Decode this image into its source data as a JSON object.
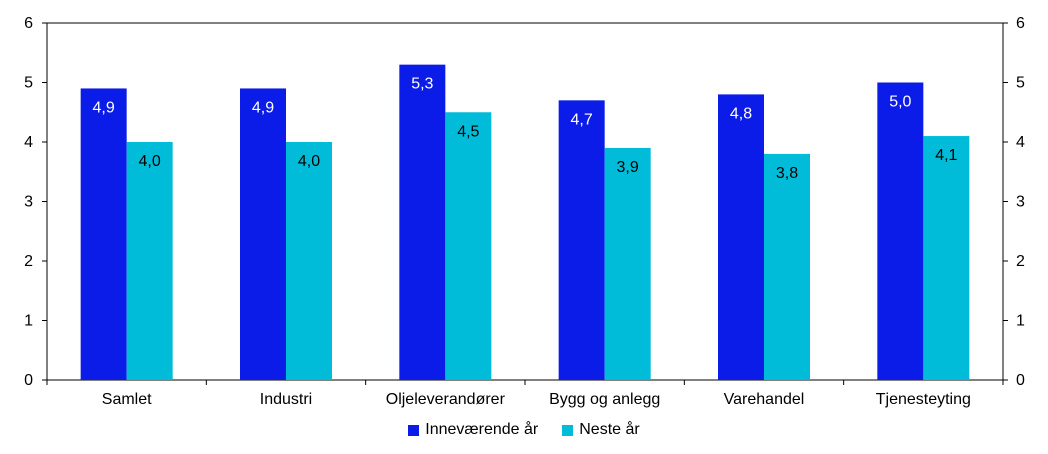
{
  "chart_data": {
    "type": "bar",
    "categories": [
      "Samlet",
      "Industri",
      "Oljeleverandører",
      "Bygg og anlegg",
      "Varehandel",
      "Tjenesteyting"
    ],
    "series": [
      {
        "name": "Inneværende år",
        "values": [
          4.9,
          4.9,
          5.3,
          4.7,
          4.8,
          5.0
        ],
        "labels": [
          "4,9",
          "4,9",
          "5,3",
          "4,7",
          "4,8",
          "5,0"
        ],
        "color": "#0b1be8"
      },
      {
        "name": "Neste år",
        "values": [
          4.0,
          4.0,
          4.5,
          3.9,
          3.8,
          4.1
        ],
        "labels": [
          "4,0",
          "4,0",
          "4,5",
          "3,9",
          "3,8",
          "4,1"
        ],
        "color": "#00bcd8"
      }
    ],
    "ylim": [
      0,
      6
    ],
    "yticks": [
      "0",
      "1",
      "2",
      "3",
      "4",
      "5",
      "6"
    ],
    "y2ticks": [
      "0",
      "1",
      "2",
      "3",
      "4",
      "5",
      "6"
    ],
    "grid": false,
    "legend": "bottom"
  }
}
